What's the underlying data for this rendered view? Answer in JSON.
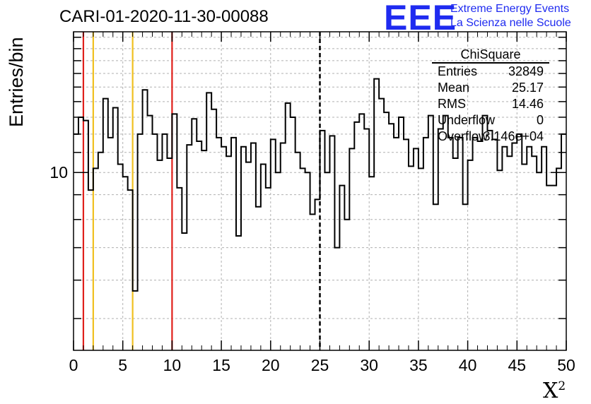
{
  "title": "CARI-01-2020-11-30-00088",
  "logo": {
    "mark": "EEE",
    "line1": "Extreme Energy Events",
    "line2": "La Scienza nelle Scuole",
    "color": "#1f2bf0"
  },
  "stats": {
    "name": "ChiSquare",
    "rows": [
      {
        "key": "Entries",
        "value": "32849"
      },
      {
        "key": "Mean",
        "value": "25.17"
      },
      {
        "key": "RMS",
        "value": "14.46"
      },
      {
        "key": "Underflow",
        "value": "0"
      },
      {
        "key": "Overflow",
        "value": "3.146e+04"
      }
    ]
  },
  "chart_data": {
    "type": "bar",
    "subtype": "step-histogram",
    "xlabel": "X",
    "xlabel_superscript": "2",
    "ylabel": "Entries/bin",
    "xlim": [
      0,
      50
    ],
    "ylim": [
      4.3,
      19.5
    ],
    "yscale": "log",
    "x_ticks": [
      "0",
      "5",
      "10",
      "15",
      "20",
      "25",
      "30",
      "35",
      "40",
      "45",
      "50"
    ],
    "y_ticks": [
      {
        "value": 10,
        "label": "10"
      }
    ],
    "grid": true,
    "bin_width": 0.5,
    "values": [
      12,
      13,
      12.8,
      9.2,
      10.2,
      11,
      14.2,
      11.8,
      13.6,
      10.4,
      9.8,
      9.2,
      5.7,
      12,
      14.8,
      13.1,
      12,
      10.6,
      12,
      10.7,
      13.2,
      9.3,
      7.5,
      11.4,
      12.9,
      11.6,
      11.1,
      14.6,
      13.5,
      11.8,
      11.3,
      10.8,
      11.8,
      7.4,
      11.3,
      10.5,
      11.5,
      8.5,
      10.4,
      9.3,
      11.7,
      10,
      11.5,
      13.9,
      13,
      11,
      10.2,
      10,
      8.2,
      8.8,
      12.2,
      10,
      11.9,
      7.0,
      9.4,
      8.0,
      11.2,
      12.7,
      13.2,
      12.3,
      9.8,
      15.6,
      14.2,
      13.3,
      12.6,
      11.8,
      13.0,
      11.7,
      10.3,
      11.2,
      10.2,
      11.8,
      13.1,
      8.6,
      12.3,
      13.1,
      11.8,
      10.7,
      11.8,
      8.6,
      10.6,
      11.8,
      11.6,
      13.1,
      12.2,
      11.7,
      10.1,
      11.3,
      10.8,
      11.5,
      12,
      10.4,
      11.3,
      10.8,
      10,
      11.3,
      9.4,
      9.4,
      10.2,
      12
    ]
  },
  "markers": {
    "red": [
      1,
      10
    ],
    "yellow": [
      2,
      6
    ],
    "dashed": [
      25
    ]
  },
  "colors": {
    "red": "#e0201b",
    "yellow": "#f0c020",
    "hist": "#000000",
    "grid": "#b0b0b0"
  }
}
